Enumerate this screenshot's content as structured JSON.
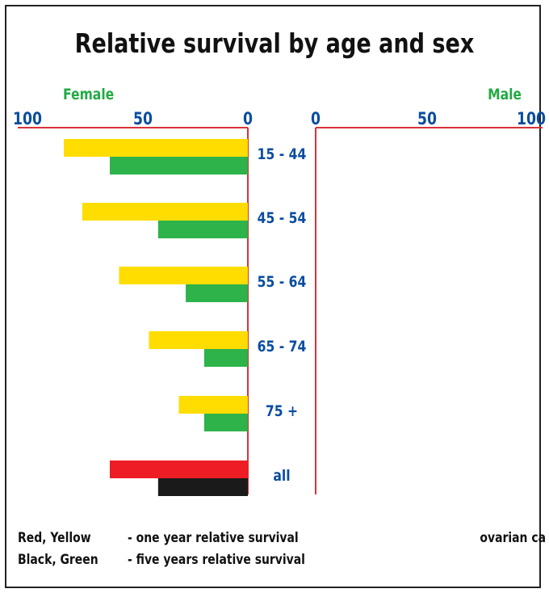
{
  "chart_data": {
    "type": "bar",
    "title": "Relative survival by age and sex",
    "left_panel": {
      "label": "Female",
      "ticks": [
        "100",
        "50",
        "0"
      ]
    },
    "right_panel": {
      "label": "Male",
      "ticks": [
        "0",
        "50",
        "100"
      ]
    },
    "xlim": [
      0,
      100
    ],
    "categories": [
      "15 - 44",
      "45 - 54",
      "55 - 64",
      "65 - 74",
      "75 +",
      "all"
    ],
    "series": [
      {
        "panel": "female",
        "kind": "one-year",
        "values": [
          80,
          72,
          56,
          43,
          30,
          60
        ]
      },
      {
        "panel": "female",
        "kind": "five-year",
        "values": [
          60,
          39,
          27,
          19,
          19,
          39
        ]
      }
    ],
    "colors": {
      "one_year": "#FFDD00",
      "five_year": "#2DB34A",
      "all_one_year": "#EE1C25",
      "all_five_year": "#1A1A1A",
      "axis": "#D8333A",
      "group_label": "#22AA44",
      "tick_label": "#0A4DA0",
      "category_label": "#0A4DA0"
    },
    "legend": {
      "line1_key": "Red, Yellow",
      "line1_text": "- one year relative survival",
      "line2_key": "Black, Green",
      "line2_text": "- five years relative survival"
    },
    "note": "ovarian ca"
  }
}
